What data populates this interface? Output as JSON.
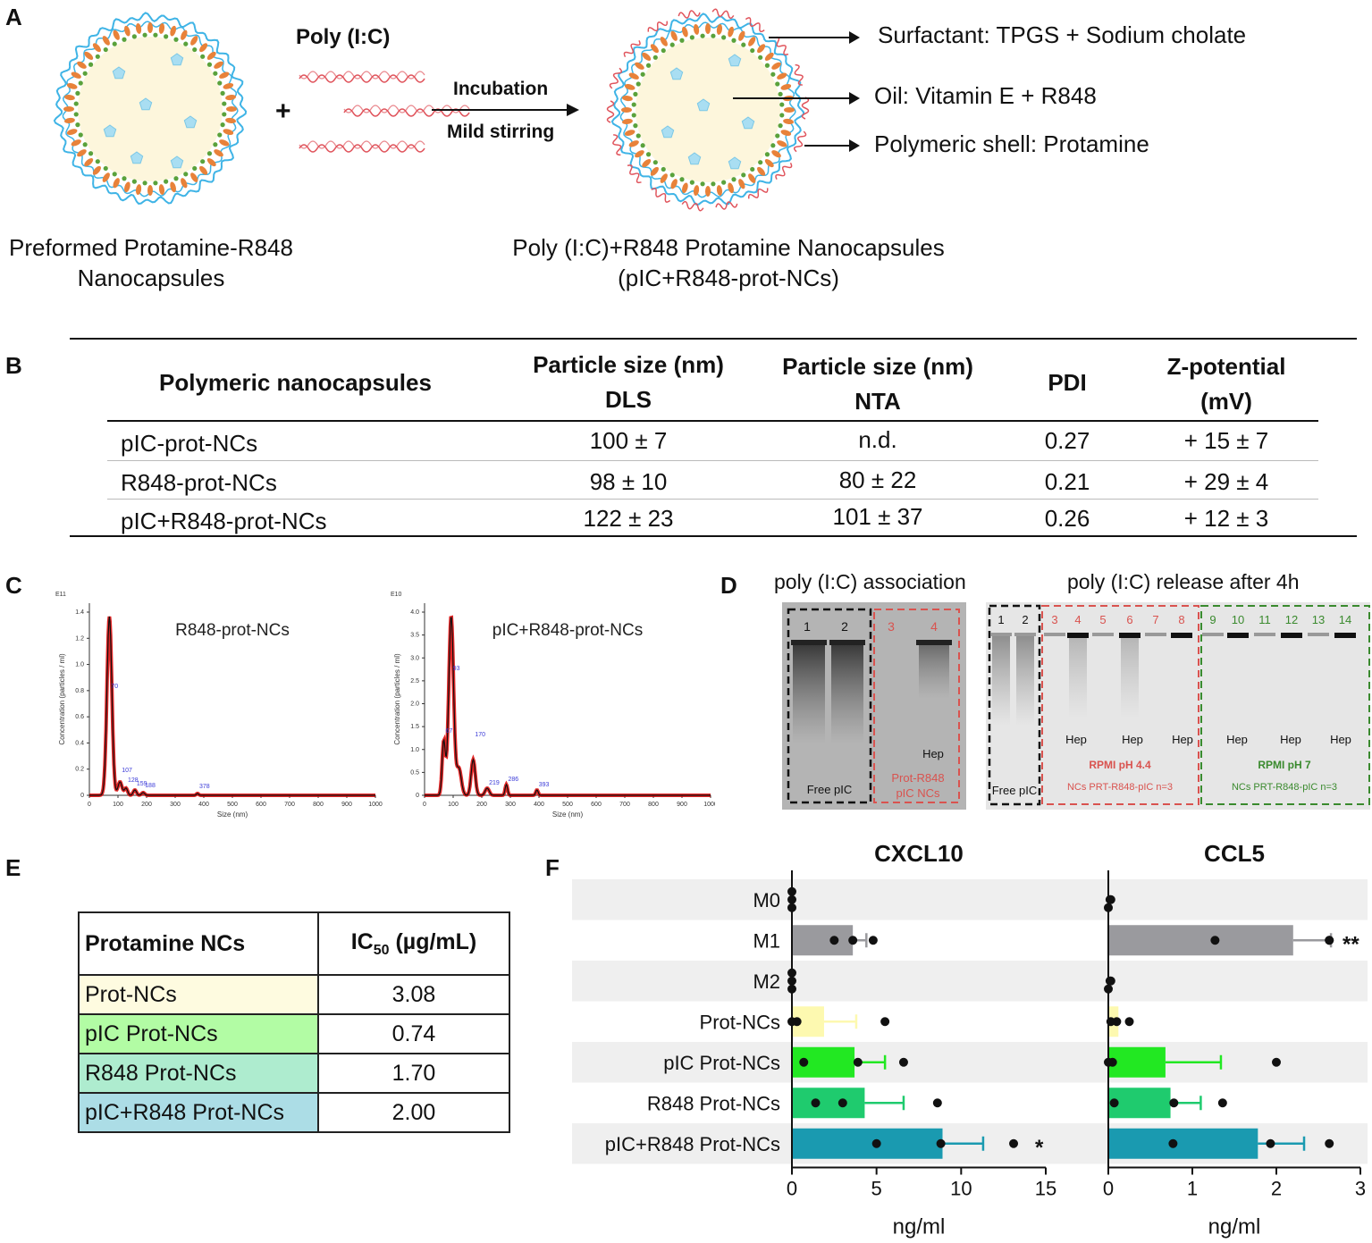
{
  "panel_labels": {
    "a": "A",
    "b": "B",
    "c": "C",
    "d": "D",
    "e": "E",
    "f": "F"
  },
  "panelA": {
    "reagent": "Poly (I:C)",
    "plus": "+",
    "arrow_top": "Incubation",
    "arrow_bottom": "Mild stirring",
    "left_caption_1": "Preformed Protamine-R848",
    "left_caption_2": "Nanocapsules",
    "right_caption_1": "Poly (I:C)+R848 Protamine Nanocapsules",
    "right_caption_2": "(pIC+R848-prot-NCs)",
    "legend": [
      "Surfactant: TPGS + Sodium cholate",
      "Oil: Vitamin E + R848",
      "Polymeric shell: Protamine"
    ],
    "colors": {
      "shell_blue": "#3fb4e6",
      "orange": "#e8823a",
      "green": "#5aa23c",
      "core": "#fdf6dc",
      "pentagon": "#a9def2",
      "pic": "#e0545c"
    }
  },
  "panelB": {
    "headers": {
      "c1": "Polymeric nanocapsules",
      "c2a": "Particle size (nm)",
      "c2b": "DLS",
      "c3a": "Particle size (nm)",
      "c3b": "NTA",
      "c4": "PDI",
      "c5a": "Z-potential",
      "c5b": "(mV)"
    },
    "rows": [
      {
        "name": "pIC-prot-NCs",
        "dls": "100 ± 7",
        "nta": "n.d.",
        "pdi": "0.27",
        "z": "+ 15 ± 7"
      },
      {
        "name": "R848-prot-NCs",
        "dls": "98 ± 10",
        "nta": "80 ± 22",
        "pdi": "0.21",
        "z": "+ 29 ± 4"
      },
      {
        "name": "pIC+R848-prot-NCs",
        "dls": "122 ± 23",
        "nta": "101 ± 37",
        "pdi": "0.26",
        "z": "+ 12 ± 3"
      }
    ]
  },
  "panelC": {
    "left": {
      "title": "R848-prot-NCs",
      "exp": "E11",
      "ylabel": "Concentration (particles / ml)",
      "xlabel": "Size (nm)",
      "yticks": [
        "0",
        "0.2",
        "0.4",
        "0.6",
        "0.8",
        "1.0",
        "1.2",
        "1.4"
      ],
      "xticks": [
        "0",
        "100",
        "200",
        "300",
        "400",
        "500",
        "600",
        "700",
        "800",
        "900",
        "1000"
      ],
      "peaks": [
        "70",
        "107",
        "128",
        "159",
        "188",
        "378"
      ]
    },
    "right": {
      "title": "pIC+R848-prot-NCs",
      "exp": "E10",
      "ylabel": "Concentration (particles / ml)",
      "xlabel": "Size (nm)",
      "yticks": [
        "0",
        "0.5",
        "1.0",
        "1.5",
        "2.0",
        "2.5",
        "3.0",
        "3.5",
        "4.0"
      ],
      "xticks": [
        "0",
        "100",
        "200",
        "300",
        "400",
        "500",
        "600",
        "700",
        "800",
        "900",
        "1000"
      ],
      "peaks": [
        "93",
        "67",
        "170",
        "219",
        "286",
        "393"
      ]
    }
  },
  "panelD": {
    "title_left": "poly (I:C) association",
    "title_right": "poly (I:C) release after 4h",
    "gel1": {
      "lanes": [
        "1",
        "2",
        "3",
        "4"
      ],
      "free": "Free pIC",
      "prot_1": "Prot-R848",
      "prot_2": "pIC NCs",
      "hep": "Hep"
    },
    "gel2": {
      "lanes": [
        "1",
        "2",
        "3",
        "4",
        "5",
        "6",
        "7",
        "8",
        "9",
        "10",
        "11",
        "12",
        "13",
        "14"
      ],
      "free": "Free pIC",
      "hep": "Hep",
      "red_label": "RPMI pH 4.4",
      "red_sub": "NCs PRT-R848-pIC n=3",
      "green_label": "RPMI pH 7",
      "green_sub": "NCs PRT-R848-pIC n=3"
    }
  },
  "panelE": {
    "header_c1": "Protamine NCs",
    "header_c2_main": "IC",
    "header_c2_sub": "50",
    "header_c2_unit": " (µg/mL)",
    "rows": [
      {
        "name": "Prot-NCs",
        "value": "3.08",
        "color": "#fefbe0"
      },
      {
        "name": "pIC Prot-NCs",
        "value": "0.74",
        "color": "#b2fca4"
      },
      {
        "name": "R848 Prot-NCs",
        "value": "1.70",
        "color": "#aeeccf"
      },
      {
        "name": "pIC+R848 Prot-NCs",
        "value": "2.00",
        "color": "#acdde6"
      }
    ]
  },
  "chart_data": [
    {
      "type": "bar",
      "orientation": "horizontal",
      "title": "CXCL10",
      "xlabel": "ng/ml",
      "xlim": [
        0,
        15
      ],
      "xticks": [
        "0",
        "5",
        "10",
        "15"
      ],
      "categories": [
        "M0",
        "M1",
        "M2",
        "Prot-NCs",
        "pIC Prot-NCs",
        "R848 Prot-NCs",
        "pIC+R848 Prot-NCs"
      ],
      "values": [
        0,
        3.6,
        0,
        1.9,
        3.7,
        4.3,
        8.9
      ],
      "errors": [
        0,
        0.8,
        0,
        1.9,
        1.8,
        2.3,
        2.4
      ],
      "points": [
        [
          0,
          0,
          0
        ],
        [
          2.5,
          3.6,
          4.8
        ],
        [
          0,
          0,
          0
        ],
        [
          0.3,
          0,
          5.5
        ],
        [
          0.7,
          3.9,
          6.6
        ],
        [
          1.4,
          3,
          8.6
        ],
        [
          5,
          8.8,
          13.1
        ]
      ],
      "significance": [
        "",
        "",
        "",
        "",
        "",
        "",
        "*"
      ],
      "colors": [
        "#9a9a9e",
        "#9a9a9e",
        "#9a9a9e",
        "#fdf9b0",
        "#22e822",
        "#1fcb6e",
        "#1a9ab0"
      ]
    },
    {
      "type": "bar",
      "orientation": "horizontal",
      "title": "CCL5",
      "xlabel": "ng/ml",
      "xlim": [
        0,
        3
      ],
      "xticks": [
        "0",
        "1",
        "2",
        "3"
      ],
      "categories": [
        "M0",
        "M1",
        "M2",
        "Prot-NCs",
        "pIC Prot-NCs",
        "R848 Prot-NCs",
        "pIC+R848 Prot-NCs"
      ],
      "values": [
        0,
        2.2,
        0,
        0.12,
        0.68,
        0.74,
        1.78
      ],
      "errors": [
        0,
        0.45,
        0,
        0,
        0.66,
        0.36,
        0.55
      ],
      "points": [
        [
          0.02,
          0.03,
          0
        ],
        [
          1.27,
          2.63,
          2.63
        ],
        [
          0.02,
          0.03,
          0
        ],
        [
          0.1,
          0.25,
          0.03
        ],
        [
          0.05,
          0,
          2
        ],
        [
          0.07,
          0.78,
          1.36
        ],
        [
          0.77,
          1.93,
          2.63
        ]
      ],
      "significance": [
        "",
        "**",
        "",
        "",
        "",
        "",
        ""
      ],
      "colors": [
        "#9a9a9e",
        "#9a9a9e",
        "#9a9a9e",
        "#fdf9b0",
        "#22e822",
        "#1fcb6e",
        "#1a9ab0"
      ]
    }
  ]
}
